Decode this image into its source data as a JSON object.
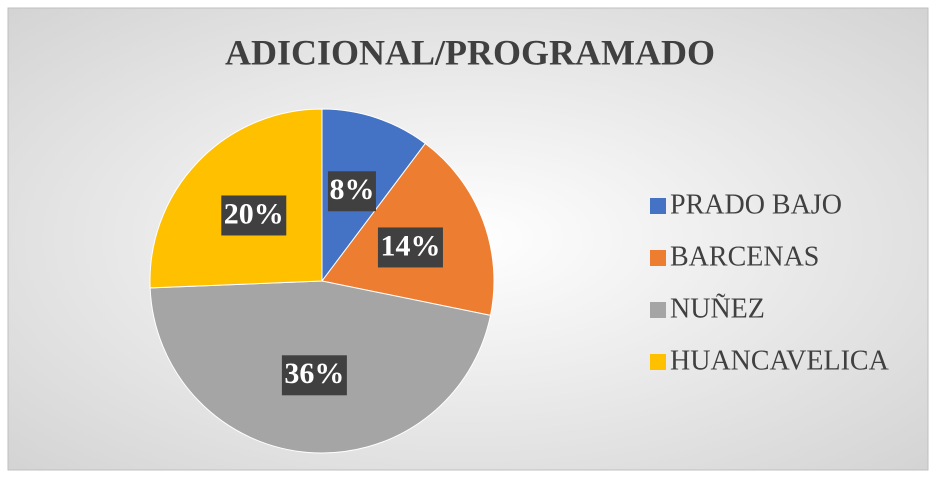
{
  "chart_data": {
    "type": "pie",
    "title": "ADICIONAL/PROGRAMADO",
    "categories": [
      "PRADO BAJO",
      "BARCENAS",
      "NUÑEZ",
      "HUANCAVELICA"
    ],
    "values": [
      8,
      14,
      36,
      20
    ],
    "value_labels": [
      "8%",
      "14%",
      "36%",
      "20%"
    ],
    "colors": [
      "#4472c4",
      "#ed7d31",
      "#a5a5a5",
      "#ffc000"
    ],
    "legend": "right"
  }
}
